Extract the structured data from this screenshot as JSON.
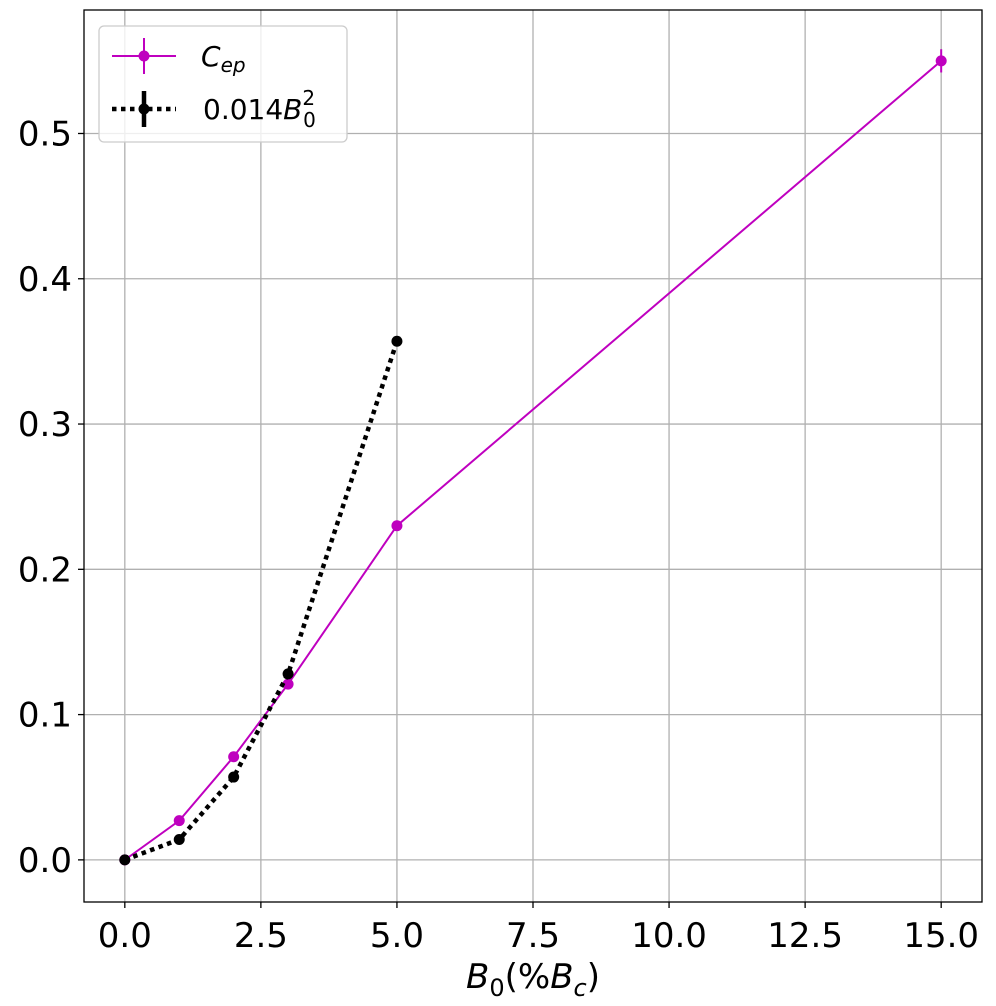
{
  "chart_data": {
    "type": "line",
    "xlabel": {
      "base": "B",
      "sub": "0",
      "open": "(%",
      "inner_base": "B",
      "inner_sub": "c",
      "close": ")"
    },
    "ylabel": "",
    "xlim": [
      -0.75,
      15.75
    ],
    "ylim": [
      -0.029,
      0.585
    ],
    "xticks": [
      0.0,
      2.5,
      5.0,
      7.5,
      10.0,
      12.5,
      15.0
    ],
    "xtick_labels": [
      "0.0",
      "2.5",
      "5.0",
      "7.5",
      "10.0",
      "12.5",
      "15.0"
    ],
    "yticks": [
      0.0,
      0.1,
      0.2,
      0.3,
      0.4,
      0.5
    ],
    "ytick_labels": [
      "0.0",
      "0.1",
      "0.2",
      "0.3",
      "0.4",
      "0.5"
    ],
    "grid": true,
    "legend_position": "top-left",
    "series": [
      {
        "name": {
          "base": "C",
          "sub": "ep"
        },
        "color": "#bf00bf",
        "style": "solid",
        "x": [
          0,
          1,
          2,
          3,
          5,
          15
        ],
        "y": [
          0.0,
          0.027,
          0.071,
          0.121,
          0.23,
          0.55
        ],
        "yerr": [
          0.0,
          0.0,
          0.0,
          0.0,
          0.0,
          0.008
        ]
      },
      {
        "name": {
          "coef": "0.014",
          "base": "B",
          "sub": "0",
          "sup": "2"
        },
        "color": "#000000",
        "style": "dotted",
        "x": [
          0,
          1,
          2,
          3,
          5
        ],
        "y": [
          0.0,
          0.014,
          0.057,
          0.128,
          0.357
        ],
        "yerr": [
          0.0,
          0.0,
          0.0,
          0.0,
          0.0
        ]
      }
    ]
  }
}
